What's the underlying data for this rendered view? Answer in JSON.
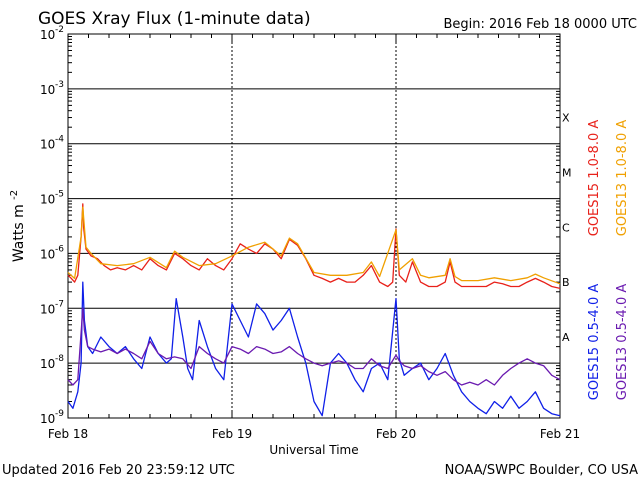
{
  "chart_data": {
    "type": "line",
    "title": "GOES Xray Flux (1-minute data)",
    "begin_label": "Begin:  2016 Feb 18 0000 UTC",
    "ylabel": "Watts m",
    "ylabel_sup": "-2",
    "xlabel": "Universal Time",
    "y_scale": "log",
    "ylim": [
      1e-09,
      0.01
    ],
    "y_ticks": [
      {
        "base": "10",
        "exp": "-9",
        "value": 1e-09
      },
      {
        "base": "10",
        "exp": "-8",
        "value": 1e-08
      },
      {
        "base": "10",
        "exp": "-7",
        "value": 1e-07
      },
      {
        "base": "10",
        "exp": "-6",
        "value": 1e-06
      },
      {
        "base": "10",
        "exp": "-5",
        "value": 1e-05
      },
      {
        "base": "10",
        "exp": "-4",
        "value": 0.0001
      },
      {
        "base": "10",
        "exp": "-3",
        "value": 0.001
      },
      {
        "base": "10",
        "exp": "-2",
        "value": 0.01
      }
    ],
    "flare_classes": [
      {
        "label": "A",
        "value": 3e-08
      },
      {
        "label": "B",
        "value": 3e-07
      },
      {
        "label": "C",
        "value": 3e-06
      },
      {
        "label": "M",
        "value": 3e-05
      },
      {
        "label": "X",
        "value": 0.0003
      }
    ],
    "x_unit": "days since 2016-02-18 00:00 UTC",
    "xlim": [
      0,
      3
    ],
    "x_ticks": [
      {
        "label": "Feb 18",
        "value": 0
      },
      {
        "label": "Feb 19",
        "value": 1
      },
      {
        "label": "Feb 20",
        "value": 2
      },
      {
        "label": "Feb 21",
        "value": 3
      }
    ],
    "grid": true,
    "legend": "right",
    "series": [
      {
        "name": "GOES15 1.0-8.0 A",
        "color": "#e8211a",
        "x": [
          0.0,
          0.02,
          0.04,
          0.06,
          0.08,
          0.09,
          0.095,
          0.11,
          0.14,
          0.18,
          0.22,
          0.26,
          0.3,
          0.35,
          0.4,
          0.45,
          0.5,
          0.55,
          0.6,
          0.65,
          0.7,
          0.75,
          0.8,
          0.85,
          0.9,
          0.95,
          1.0,
          1.05,
          1.1,
          1.15,
          1.2,
          1.25,
          1.3,
          1.35,
          1.4,
          1.45,
          1.5,
          1.55,
          1.6,
          1.65,
          1.7,
          1.75,
          1.8,
          1.85,
          1.9,
          1.95,
          1.98,
          2.0,
          2.02,
          2.06,
          2.1,
          2.15,
          2.2,
          2.25,
          2.3,
          2.33,
          2.36,
          2.4,
          2.45,
          2.5,
          2.55,
          2.6,
          2.65,
          2.7,
          2.75,
          2.8,
          2.85,
          2.9,
          2.95,
          3.0
        ],
        "y": [
          4e-07,
          3.5e-07,
          3e-07,
          4e-07,
          2e-06,
          8e-06,
          3e-06,
          1.2e-06,
          9e-07,
          8e-07,
          6e-07,
          5e-07,
          5.5e-07,
          5e-07,
          6e-07,
          5e-07,
          8e-07,
          6e-07,
          5e-07,
          1e-06,
          8e-07,
          6e-07,
          5e-07,
          8e-07,
          6e-07,
          5e-07,
          8e-07,
          1.5e-06,
          1.2e-06,
          1e-06,
          1.5e-06,
          1.2e-06,
          8e-07,
          1.8e-06,
          1.4e-06,
          8e-07,
          4e-07,
          3.5e-07,
          3e-07,
          3.5e-07,
          3e-07,
          3e-07,
          4e-07,
          6e-07,
          3e-07,
          2.5e-07,
          3e-07,
          2.8e-06,
          4e-07,
          3e-07,
          7e-07,
          3e-07,
          2.5e-07,
          2.5e-07,
          3e-07,
          7e-07,
          3e-07,
          2.5e-07,
          2.5e-07,
          2.5e-07,
          2.5e-07,
          3e-07,
          2.8e-07,
          2.5e-07,
          2.5e-07,
          3e-07,
          3.5e-07,
          3e-07,
          2.5e-07,
          2.3e-07
        ]
      },
      {
        "name": "GOES13 1.0-8.0 A",
        "color": "#f0a000",
        "x": [
          0.0,
          0.04,
          0.08,
          0.09,
          0.11,
          0.14,
          0.2,
          0.3,
          0.4,
          0.5,
          0.6,
          0.65,
          0.7,
          0.8,
          0.9,
          1.0,
          1.1,
          1.2,
          1.3,
          1.35,
          1.4,
          1.5,
          1.6,
          1.7,
          1.8,
          1.85,
          1.9,
          2.0,
          2.02,
          2.1,
          2.15,
          2.2,
          2.3,
          2.33,
          2.36,
          2.4,
          2.5,
          2.6,
          2.7,
          2.8,
          2.85,
          2.9,
          3.0
        ],
        "y": [
          4.5e-07,
          3.5e-07,
          2e-06,
          7e-06,
          1.3e-06,
          1e-06,
          6.5e-07,
          6e-07,
          6.5e-07,
          8.5e-07,
          5.5e-07,
          1.1e-06,
          8.5e-07,
          6e-07,
          6.5e-07,
          9e-07,
          1.3e-06,
          1.6e-06,
          9e-07,
          1.9e-06,
          1.5e-06,
          4.5e-07,
          4e-07,
          4e-07,
          4.5e-07,
          7e-07,
          3.8e-07,
          2.7e-06,
          5e-07,
          8e-07,
          4e-07,
          3.6e-07,
          4e-07,
          8e-07,
          3.8e-07,
          3.2e-07,
          3.2e-07,
          3.6e-07,
          3.2e-07,
          3.6e-07,
          4.2e-07,
          3.6e-07,
          2.8e-07
        ]
      },
      {
        "name": "GOES15 0.5-4.0 A",
        "color": "#1020e8",
        "x": [
          0.0,
          0.03,
          0.06,
          0.08,
          0.09,
          0.1,
          0.12,
          0.15,
          0.2,
          0.25,
          0.3,
          0.35,
          0.4,
          0.45,
          0.5,
          0.55,
          0.6,
          0.63,
          0.66,
          0.7,
          0.73,
          0.76,
          0.8,
          0.85,
          0.9,
          0.95,
          1.0,
          1.05,
          1.1,
          1.15,
          1.2,
          1.25,
          1.3,
          1.35,
          1.4,
          1.45,
          1.5,
          1.55,
          1.6,
          1.65,
          1.7,
          1.75,
          1.8,
          1.85,
          1.9,
          1.95,
          2.0,
          2.02,
          2.05,
          2.1,
          2.15,
          2.2,
          2.25,
          2.3,
          2.35,
          2.4,
          2.45,
          2.5,
          2.55,
          2.6,
          2.65,
          2.7,
          2.75,
          2.8,
          2.85,
          2.9,
          2.95,
          3.0
        ],
        "y": [
          2e-09,
          1.5e-09,
          3e-09,
          1e-08,
          3e-07,
          6e-08,
          2e-08,
          1.5e-08,
          3e-08,
          2e-08,
          1.5e-08,
          2e-08,
          1.2e-08,
          8e-09,
          3e-08,
          1.5e-08,
          1e-08,
          1.2e-08,
          1.5e-07,
          3e-08,
          8e-09,
          5e-09,
          6e-08,
          2e-08,
          8e-09,
          5e-09,
          1.2e-07,
          6e-08,
          3e-08,
          1.2e-07,
          8e-08,
          4e-08,
          6e-08,
          1e-07,
          3e-08,
          1e-08,
          2e-09,
          1.1e-09,
          1e-08,
          1.5e-08,
          1e-08,
          5e-09,
          3e-09,
          8e-09,
          1e-08,
          5e-09,
          1.5e-07,
          1.2e-08,
          6e-09,
          8e-09,
          1e-08,
          5e-09,
          8e-09,
          1.5e-08,
          6e-09,
          3e-09,
          2e-09,
          1.5e-09,
          1.2e-09,
          2e-09,
          1.5e-09,
          2.5e-09,
          1.5e-09,
          2e-09,
          3e-09,
          1.5e-09,
          1.2e-09,
          1.1e-09
        ]
      },
      {
        "name": "GOES13 0.5-4.0 A",
        "color": "#6a1ab0",
        "x": [
          0.0,
          0.03,
          0.06,
          0.09,
          0.1,
          0.12,
          0.15,
          0.2,
          0.25,
          0.3,
          0.35,
          0.4,
          0.45,
          0.5,
          0.55,
          0.6,
          0.65,
          0.7,
          0.75,
          0.8,
          0.85,
          0.9,
          0.95,
          1.0,
          1.05,
          1.1,
          1.15,
          1.2,
          1.25,
          1.3,
          1.35,
          1.4,
          1.45,
          1.5,
          1.55,
          1.6,
          1.65,
          1.7,
          1.75,
          1.8,
          1.85,
          1.9,
          1.95,
          2.0,
          2.02,
          2.05,
          2.1,
          2.15,
          2.2,
          2.25,
          2.3,
          2.35,
          2.4,
          2.45,
          2.5,
          2.55,
          2.6,
          2.65,
          2.7,
          2.75,
          2.8,
          2.85,
          2.9,
          2.95,
          3.0
        ],
        "y": [
          5e-09,
          4e-09,
          5e-09,
          1e-07,
          4e-08,
          2e-08,
          1.8e-08,
          1.6e-08,
          1.8e-08,
          1.5e-08,
          1.8e-08,
          1.5e-08,
          1.2e-08,
          2.5e-08,
          1.5e-08,
          1.2e-08,
          1.3e-08,
          1.2e-08,
          8e-09,
          2e-08,
          1.5e-08,
          1.2e-08,
          1e-08,
          2e-08,
          1.8e-08,
          1.5e-08,
          2e-08,
          1.8e-08,
          1.5e-08,
          1.6e-08,
          2e-08,
          1.5e-08,
          1.2e-08,
          1e-08,
          9e-09,
          1e-08,
          1.1e-08,
          1e-08,
          8e-09,
          8e-09,
          1.2e-08,
          9e-09,
          8e-09,
          1.4e-08,
          1.1e-08,
          9e-09,
          8e-09,
          9e-09,
          7e-09,
          6e-09,
          7e-09,
          5e-09,
          4e-09,
          4.5e-09,
          4e-09,
          5e-09,
          4e-09,
          6e-09,
          8e-09,
          1e-08,
          1.2e-08,
          1e-08,
          9e-09,
          6e-09,
          5e-09
        ]
      }
    ]
  },
  "footer": {
    "updated": "Updated 2016 Feb 20 23:59:12 UTC",
    "credit": "NOAA/SWPC Boulder, CO USA"
  }
}
